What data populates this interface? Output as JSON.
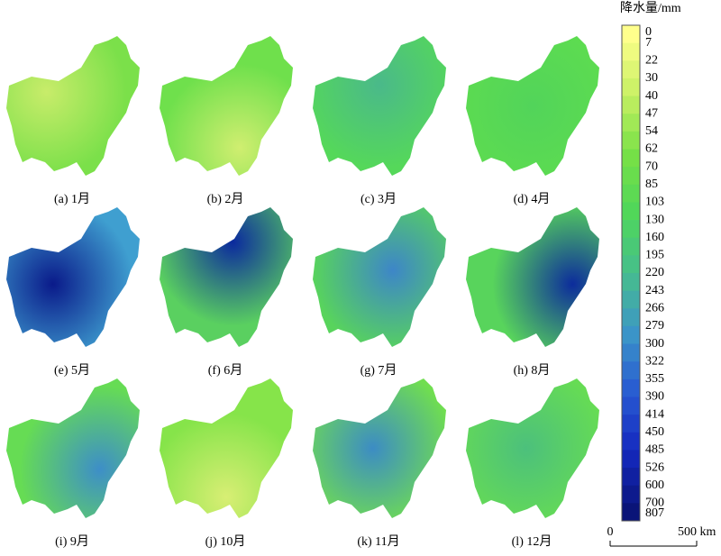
{
  "panels": [
    {
      "caption": "(a) 1月"
    },
    {
      "caption": "(b) 2月"
    },
    {
      "caption": "(c) 3月"
    },
    {
      "caption": "(d) 4月"
    },
    {
      "caption": "(e) 5月"
    },
    {
      "caption": "(f) 6月"
    },
    {
      "caption": "(g) 7月"
    },
    {
      "caption": "(h) 8月"
    },
    {
      "caption": "(i) 9月"
    },
    {
      "caption": "(j) 10月"
    },
    {
      "caption": "(k) 11月"
    },
    {
      "caption": "(l) 12月"
    }
  ],
  "legend": {
    "title": "降水量/mm",
    "labels": [
      0,
      7,
      22,
      30,
      40,
      47,
      54,
      62,
      70,
      85,
      103,
      130,
      160,
      195,
      220,
      243,
      266,
      279,
      300,
      322,
      355,
      390,
      414,
      450,
      485,
      526,
      600,
      700,
      807
    ]
  },
  "scale_bar": {
    "start": "0",
    "end": "500 km"
  }
}
